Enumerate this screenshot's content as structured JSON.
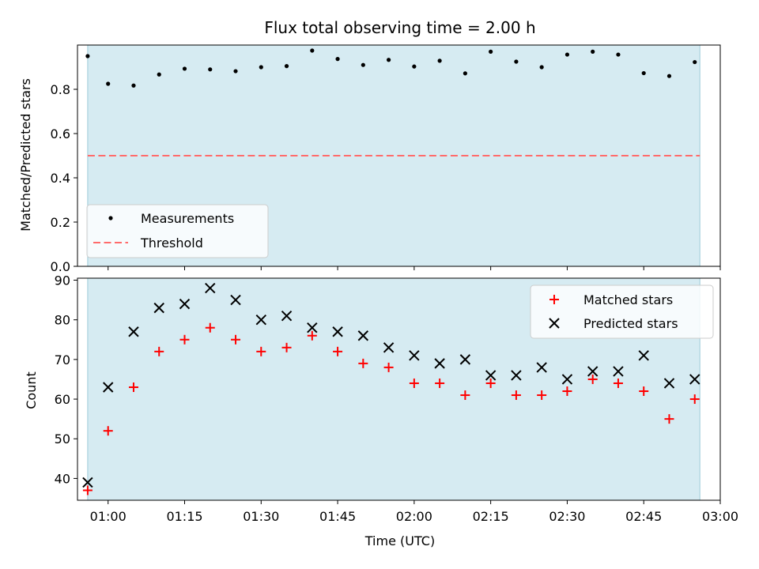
{
  "chart_data": [
    {
      "type": "scatter",
      "title": "Flux total observing time = 2.00 h",
      "ylabel": "Matched/Predicted stars",
      "xlabel": "",
      "xlim_minutes": [
        54,
        180
      ],
      "ylim": [
        0,
        1.0
      ],
      "yticks": [
        0.0,
        0.2,
        0.4,
        0.6,
        0.8
      ],
      "ytick_labels": [
        "0.0",
        "0.2",
        "0.4",
        "0.6",
        "0.8"
      ],
      "shaded_span_minutes": [
        56,
        176
      ],
      "shade_color": "#add8e6",
      "threshold": 0.5,
      "threshold_color": "#ff6b6b",
      "legend_position": "lower-left",
      "legend": [
        "Measurements",
        "Threshold"
      ],
      "series": [
        {
          "name": "Measurements",
          "marker": "dot",
          "color": "#000000",
          "x_minutes": [
            56,
            60,
            65,
            70,
            75,
            80,
            85,
            90,
            95,
            100,
            105,
            110,
            115,
            120,
            125,
            130,
            135,
            140,
            145,
            150,
            155,
            160,
            165,
            170,
            175
          ],
          "values": [
            0.95,
            0.825,
            0.817,
            0.867,
            0.893,
            0.89,
            0.882,
            0.9,
            0.905,
            0.975,
            0.937,
            0.91,
            0.933,
            0.903,
            0.929,
            0.872,
            0.97,
            0.925,
            0.9,
            0.957,
            0.97,
            0.957,
            0.873,
            0.86,
            0.923
          ]
        }
      ]
    },
    {
      "type": "scatter",
      "title": "",
      "ylabel": "Count",
      "xlabel": "Time (UTC)",
      "xlim_minutes": [
        54,
        180
      ],
      "ylim": [
        34.5,
        90.5
      ],
      "yticks": [
        40,
        50,
        60,
        70,
        80,
        90
      ],
      "ytick_labels": [
        "40",
        "50",
        "60",
        "70",
        "80",
        "90"
      ],
      "xticks_minutes": [
        60,
        75,
        90,
        105,
        120,
        135,
        150,
        165,
        180
      ],
      "xtick_labels": [
        "01:00",
        "01:15",
        "01:30",
        "01:45",
        "02:00",
        "02:15",
        "02:30",
        "02:45",
        "03:00"
      ],
      "shaded_span_minutes": [
        56,
        176
      ],
      "shade_color": "#add8e6",
      "legend_position": "upper-right",
      "legend": [
        "Matched stars",
        "Predicted stars"
      ],
      "x_minutes": [
        56,
        60,
        65,
        70,
        75,
        80,
        85,
        90,
        95,
        100,
        105,
        110,
        115,
        120,
        125,
        130,
        135,
        140,
        145,
        150,
        155,
        160,
        165,
        170,
        175
      ],
      "series": [
        {
          "name": "Matched stars",
          "marker": "plus",
          "color": "#ff0000",
          "values": [
            37,
            52,
            63,
            72,
            75,
            78,
            75,
            72,
            73,
            76,
            72,
            69,
            68,
            64,
            64,
            61,
            64,
            61,
            61,
            62,
            65,
            64,
            62,
            55,
            60
          ]
        },
        {
          "name": "Predicted stars",
          "marker": "x",
          "color": "#000000",
          "values": [
            39,
            63,
            77,
            83,
            84,
            88,
            85,
            80,
            81,
            78,
            77,
            76,
            73,
            71,
            69,
            70,
            66,
            66,
            68,
            65,
            67,
            67,
            71,
            64,
            65
          ]
        }
      ]
    }
  ]
}
